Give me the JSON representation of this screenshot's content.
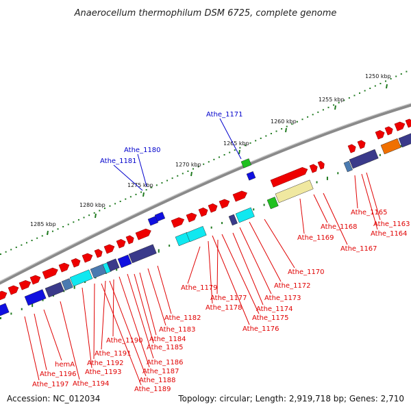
{
  "title": "Anaerocellum thermophilum DSM 6725, complete genome",
  "footer": {
    "accession": "Accession: NC_012034",
    "summary": "Topology: circular; Length: 2,919,718 bp; Genes: 2,710"
  },
  "colors": {
    "backbone": "#8a8a8a",
    "tick_major": "#1f7a1f",
    "tick_minor": "#1f7a1f",
    "label_forward": "#e00000",
    "label_reverse": "#0000cc",
    "gene_red": "#ee0000",
    "gene_navy": "#3a3a8a",
    "gene_blue": "#1010e0",
    "gene_cyan": "#10e8f0",
    "gene_green": "#20c020",
    "gene_yellow": "#f0e8a0",
    "gene_orange": "#f07000",
    "gene_steel": "#4a7ab0"
  },
  "kbp_ticks": [
    {
      "label": "1250 kbp"
    },
    {
      "label": "1255 kbp"
    },
    {
      "label": "1260 kbp"
    },
    {
      "label": "1265 kbp"
    },
    {
      "label": "1270 kbp"
    },
    {
      "label": "1275 kbp"
    },
    {
      "label": "1280 kbp"
    },
    {
      "label": "1285 kbp"
    }
  ],
  "reverse_labels": [
    {
      "name": "Athe_1171"
    },
    {
      "name": "Athe_1180"
    },
    {
      "name": "Athe_1181"
    }
  ],
  "forward_labels": [
    {
      "name": "Athe_1165"
    },
    {
      "name": "Athe_1163"
    },
    {
      "name": "Athe_1164"
    },
    {
      "name": "Athe_1168"
    },
    {
      "name": "Athe_1169"
    },
    {
      "name": "Athe_1167"
    },
    {
      "name": "Athe_1170"
    },
    {
      "name": "Athe_1172"
    },
    {
      "name": "Athe_1173"
    },
    {
      "name": "Athe_1174"
    },
    {
      "name": "Athe_1175"
    },
    {
      "name": "Athe_1176"
    },
    {
      "name": "Athe_1179"
    },
    {
      "name": "Athe_1177"
    },
    {
      "name": "Athe_1178"
    },
    {
      "name": "Athe_1182"
    },
    {
      "name": "Athe_1183"
    },
    {
      "name": "Athe_1184"
    },
    {
      "name": "Athe_1185"
    },
    {
      "name": "Athe_1190"
    },
    {
      "name": "Athe_1186"
    },
    {
      "name": "Athe_1191"
    },
    {
      "name": "Athe_1187"
    },
    {
      "name": "Athe_1192"
    },
    {
      "name": "Athe_1188"
    },
    {
      "name": "Athe_1193"
    },
    {
      "name": "Athe_1189"
    },
    {
      "name": "hemA"
    },
    {
      "name": "Athe_1196"
    },
    {
      "name": "Athe_1194"
    },
    {
      "name": "Athe_1197"
    }
  ]
}
